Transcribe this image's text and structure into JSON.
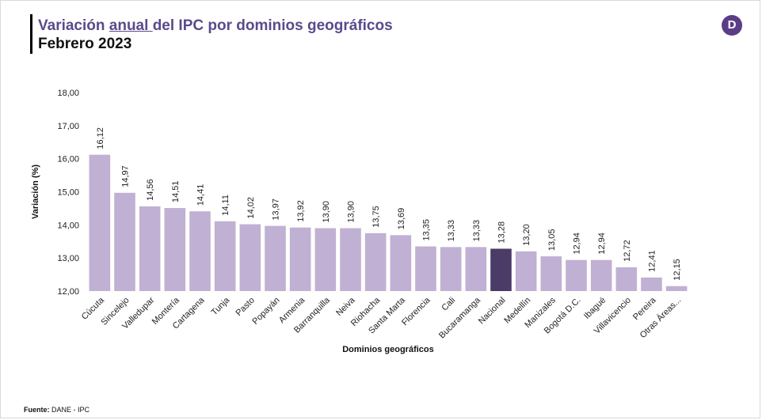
{
  "header": {
    "title_pre": "Variación ",
    "title_underlined": "anual ",
    "title_post": "del IPC por dominios geográficos",
    "subtitle": "Febrero 2023",
    "logo_letter": "D"
  },
  "footer": {
    "source_label": "Fuente:",
    "source_text": " DANE - IPC"
  },
  "colors": {
    "bar": "#c0b0d3",
    "highlight": "#4a3c66",
    "title": "#5b4a8b"
  },
  "chart_data": {
    "type": "bar",
    "categories": [
      "Cúcuta",
      "Sincelejo",
      "Valledupar",
      "Montería",
      "Cartagena",
      "Tunja",
      "Pasto",
      "Popayán",
      "Armenia",
      "Barranquilla",
      "Neiva",
      "Riohacha",
      "Santa Marta",
      "Florencia",
      "Cali",
      "Bucaramanga",
      "Nacional",
      "Medellín",
      "Manizales",
      "Bogotá D.C.",
      "Ibagué",
      "Villavicencio",
      "Pereira",
      "Otras Áreas..."
    ],
    "values": [
      16.12,
      14.97,
      14.56,
      14.51,
      14.41,
      14.11,
      14.02,
      13.97,
      13.92,
      13.9,
      13.9,
      13.75,
      13.69,
      13.35,
      13.33,
      13.33,
      13.28,
      13.2,
      13.05,
      12.94,
      12.94,
      12.72,
      12.41,
      12.15
    ],
    "value_labels": [
      "16,12",
      "14,97",
      "14,56",
      "14,51",
      "14,41",
      "14,11",
      "14,02",
      "13,97",
      "13,92",
      "13,90",
      "13,90",
      "13,75",
      "13,69",
      "13,35",
      "13,33",
      "13,33",
      "13,28",
      "13,20",
      "13,05",
      "12,94",
      "12,94",
      "12,72",
      "12,41",
      "12,15"
    ],
    "highlight_category": "Nacional",
    "xlabel": "Dominios geográficos",
    "ylabel": "Variación (%)",
    "ylim": [
      12,
      18
    ],
    "yticks": [
      12,
      13,
      14,
      15,
      16,
      17,
      18
    ],
    "ytick_labels": [
      "12,00",
      "13,00",
      "14,00",
      "15,00",
      "16,00",
      "17,00",
      "18,00"
    ],
    "grid": false
  }
}
